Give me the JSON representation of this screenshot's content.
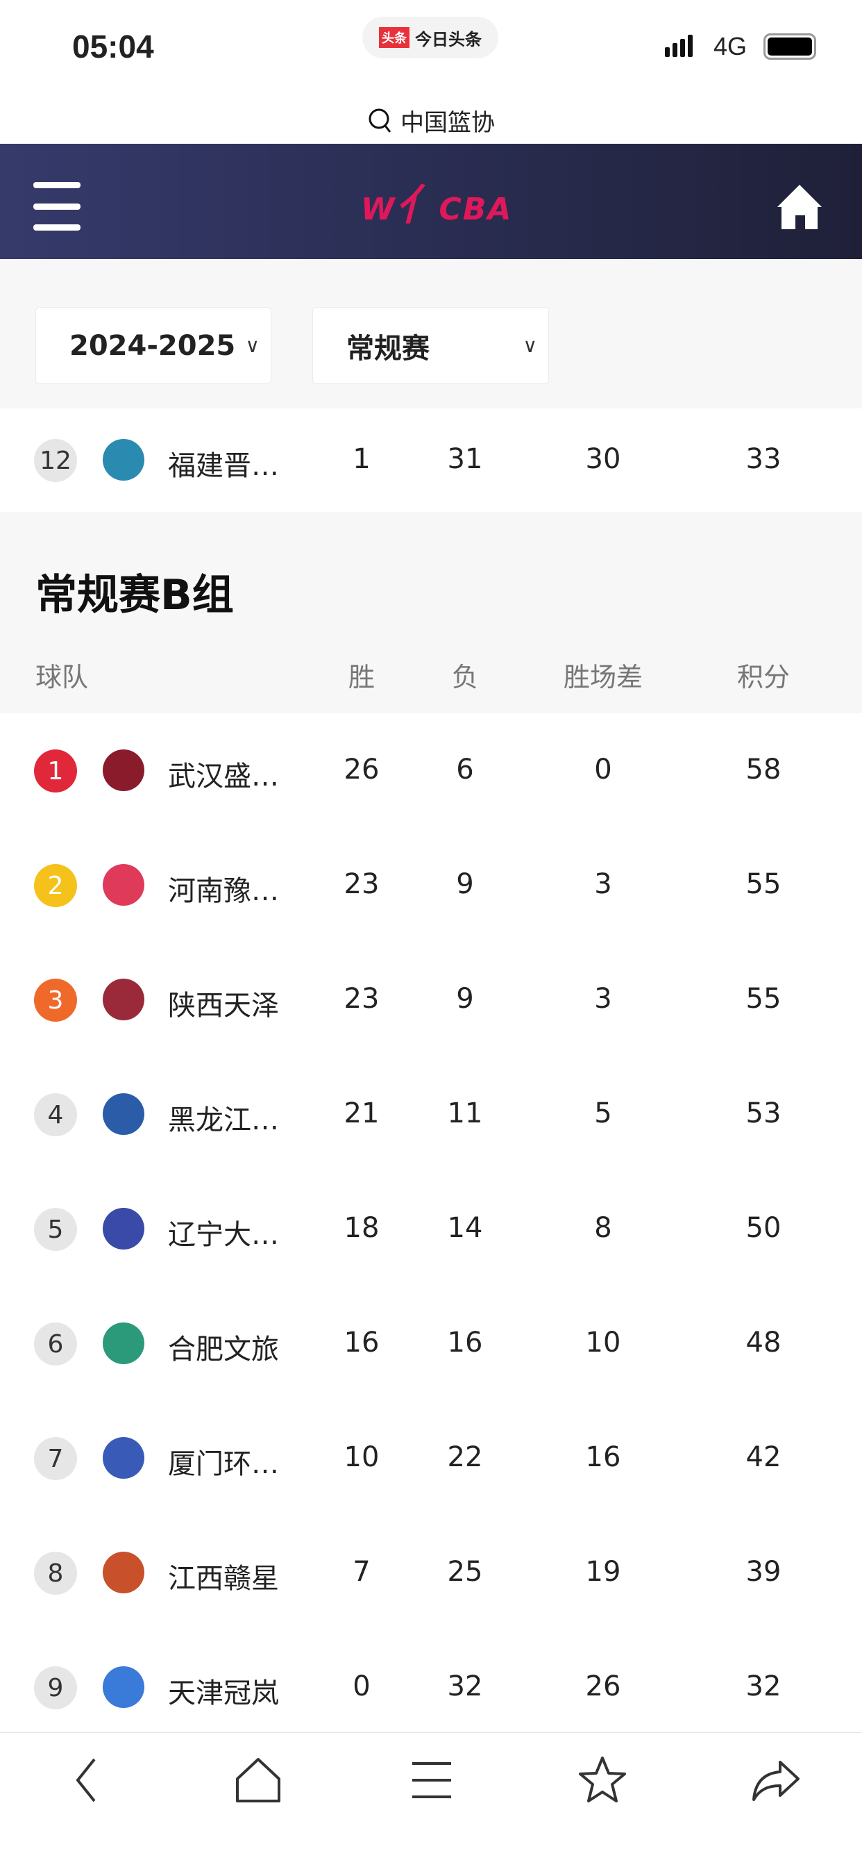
{
  "status": {
    "time": "05:04",
    "app_badge": "头条",
    "app_name": "今日头条",
    "network": "4G"
  },
  "search": {
    "query": "中国篮协",
    "icon": "search-icon"
  },
  "header": {
    "logo_text": "WCBA",
    "menu_icon": "hamburger-icon",
    "home_icon": "home-icon"
  },
  "filters": {
    "season": "2024-2025",
    "stage": "常规赛"
  },
  "prev_group_last_row": {
    "rank": "12",
    "team": "福建晋…",
    "wins": "1",
    "losses": "31",
    "games_behind": "30",
    "points": "33"
  },
  "group": {
    "title": "常规赛B组",
    "columns": [
      "球队",
      "胜",
      "负",
      "胜场差",
      "积分"
    ],
    "rows": [
      {
        "rank": "1",
        "team": "武汉盛…",
        "wins": "26",
        "losses": "6",
        "games_behind": "0",
        "points": "58",
        "rank_color": "#e0283a",
        "logo_color": "#8a1b2b"
      },
      {
        "rank": "2",
        "team": "河南豫…",
        "wins": "23",
        "losses": "9",
        "games_behind": "3",
        "points": "55",
        "rank_color": "#f5c21b",
        "logo_color": "#e03a5a"
      },
      {
        "rank": "3",
        "team": "陕西天泽",
        "wins": "23",
        "losses": "9",
        "games_behind": "3",
        "points": "55",
        "rank_color": "#ef6a2a",
        "logo_color": "#9a2a3a"
      },
      {
        "rank": "4",
        "team": "黑龙江…",
        "wins": "21",
        "losses": "11",
        "games_behind": "5",
        "points": "53",
        "rank_color": "#e6e6e6",
        "logo_color": "#2a5ca8"
      },
      {
        "rank": "5",
        "team": "辽宁大…",
        "wins": "18",
        "losses": "14",
        "games_behind": "8",
        "points": "50",
        "rank_color": "#e6e6e6",
        "logo_color": "#3a4aa8"
      },
      {
        "rank": "6",
        "team": "合肥文旅",
        "wins": "16",
        "losses": "16",
        "games_behind": "10",
        "points": "48",
        "rank_color": "#e6e6e6",
        "logo_color": "#2a9a7a"
      },
      {
        "rank": "7",
        "team": "厦门环…",
        "wins": "10",
        "losses": "22",
        "games_behind": "16",
        "points": "42",
        "rank_color": "#e6e6e6",
        "logo_color": "#3a5ab8"
      },
      {
        "rank": "8",
        "team": "江西赣星",
        "wins": "7",
        "losses": "25",
        "games_behind": "19",
        "points": "39",
        "rank_color": "#e6e6e6",
        "logo_color": "#c8502a"
      },
      {
        "rank": "9",
        "team": "天津冠岚",
        "wins": "0",
        "losses": "32",
        "games_behind": "26",
        "points": "32",
        "rank_color": "#e6e6e6",
        "logo_color": "#3a7ad8"
      }
    ]
  },
  "bottom_nav": [
    "back-icon",
    "home-icon",
    "menu-icon",
    "star-icon",
    "share-icon"
  ]
}
